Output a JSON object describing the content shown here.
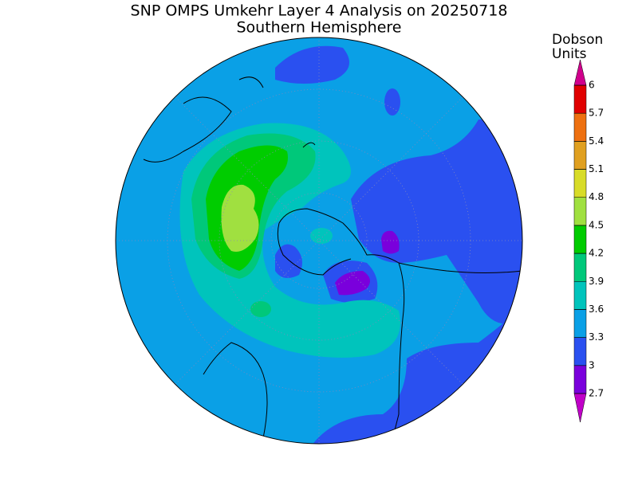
{
  "header": {
    "title": "SNP OMPS Umkehr Layer 4 Analysis on 20250718",
    "subtitle": "Southern Hemisphere"
  },
  "legend": {
    "title": [
      "Dobson",
      "Units"
    ],
    "ticks": [
      2.7,
      3,
      3.3,
      3.6,
      3.9,
      4.2,
      4.5,
      4.8,
      5.1,
      5.4,
      5.7,
      6
    ],
    "colors": [
      "#7a00dc",
      "#2a50f0",
      "#0aa0e6",
      "#00c4bc",
      "#00c87a",
      "#00cc00",
      "#a0e040",
      "#d8dc28",
      "#e0a020",
      "#ee7010",
      "#e00000"
    ],
    "under_color": "#c000c8",
    "over_color": "#d0008c"
  }
}
